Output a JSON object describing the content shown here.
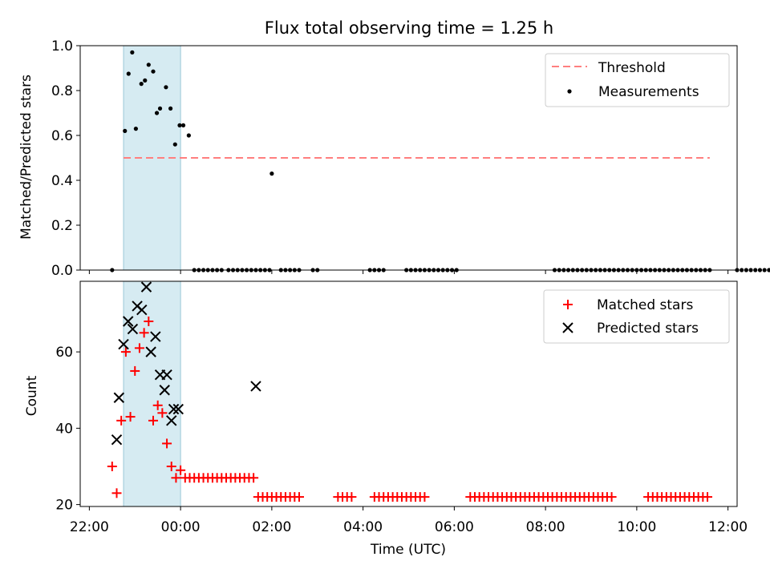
{
  "title": "Flux total observing time = 1.25 h",
  "chart_data": [
    {
      "type": "scatter",
      "ylabel": "Matched/Predicted stars",
      "ylim": [
        0.0,
        1.0
      ],
      "yticks": [
        "0.0",
        "0.2",
        "0.4",
        "0.6",
        "0.8",
        "1.0"
      ],
      "ytick_values": [
        0,
        0.2,
        0.4,
        0.6,
        0.8,
        1.0
      ],
      "grid": false,
      "legend_position": "top-right",
      "shaded_interval": [
        -1.25,
        0.0
      ],
      "threshold": {
        "name": "Threshold",
        "x_range": [
          -1.25,
          11.6
        ],
        "value": 0.5,
        "color": "#ff7f7f"
      },
      "series": [
        {
          "name": "Measurements",
          "marker": "dot",
          "color": "#000000",
          "points": [
            [
              -1.5,
              0.0
            ],
            [
              -1.22,
              0.62
            ],
            [
              -1.14,
              0.875
            ],
            [
              -1.06,
              0.97
            ],
            [
              -0.98,
              0.63
            ],
            [
              -0.86,
              0.83
            ],
            [
              -0.78,
              0.845
            ],
            [
              -0.7,
              0.915
            ],
            [
              -0.6,
              0.885
            ],
            [
              -0.52,
              0.7
            ],
            [
              -0.45,
              0.72
            ],
            [
              -0.32,
              0.815
            ],
            [
              -0.22,
              0.72
            ],
            [
              -0.12,
              0.56
            ],
            [
              -0.02,
              0.645
            ],
            [
              0.06,
              0.645
            ],
            [
              0.18,
              0.6
            ],
            [
              0.3,
              0.0
            ],
            [
              0.4,
              0.0
            ],
            [
              0.5,
              0.0
            ],
            [
              0.6,
              0.0
            ],
            [
              0.7,
              0.0
            ],
            [
              0.8,
              0.0
            ],
            [
              0.9,
              0.0
            ],
            [
              1.05,
              0.0
            ],
            [
              1.15,
              0.0
            ],
            [
              1.25,
              0.0
            ],
            [
              1.35,
              0.0
            ],
            [
              1.45,
              0.0
            ],
            [
              1.55,
              0.0
            ],
            [
              1.65,
              0.0
            ],
            [
              1.75,
              0.0
            ],
            [
              1.85,
              0.0
            ],
            [
              1.95,
              0.0
            ],
            [
              2.0,
              0.43
            ],
            [
              2.2,
              0.0
            ],
            [
              2.3,
              0.0
            ],
            [
              2.4,
              0.0
            ],
            [
              2.5,
              0.0
            ],
            [
              2.6,
              0.0
            ],
            [
              2.9,
              0.0
            ],
            [
              3.0,
              0.0
            ],
            [
              4.15,
              0.0
            ],
            [
              4.25,
              0.0
            ],
            [
              4.35,
              0.0
            ],
            [
              4.45,
              0.0
            ],
            [
              4.95,
              0.0
            ],
            [
              5.05,
              0.0
            ],
            [
              5.15,
              0.0
            ],
            [
              5.25,
              0.0
            ],
            [
              5.35,
              0.0
            ],
            [
              5.45,
              0.0
            ],
            [
              5.55,
              0.0
            ],
            [
              5.65,
              0.0
            ],
            [
              5.75,
              0.0
            ],
            [
              5.85,
              0.0
            ],
            [
              5.95,
              0.0
            ],
            [
              6.05,
              0.0
            ],
            [
              8.2,
              0.0
            ],
            [
              8.3,
              0.0
            ],
            [
              8.4,
              0.0
            ],
            [
              8.5,
              0.0
            ],
            [
              8.6,
              0.0
            ],
            [
              8.7,
              0.0
            ],
            [
              8.8,
              0.0
            ],
            [
              8.9,
              0.0
            ],
            [
              9.0,
              0.0
            ],
            [
              9.1,
              0.0
            ],
            [
              9.2,
              0.0
            ],
            [
              9.3,
              0.0
            ],
            [
              9.4,
              0.0
            ],
            [
              9.5,
              0.0
            ],
            [
              9.6,
              0.0
            ],
            [
              9.7,
              0.0
            ],
            [
              9.8,
              0.0
            ],
            [
              9.9,
              0.0
            ],
            [
              10.0,
              0.0
            ],
            [
              10.1,
              0.0
            ],
            [
              10.2,
              0.0
            ],
            [
              10.3,
              0.0
            ],
            [
              10.4,
              0.0
            ],
            [
              10.5,
              0.0
            ],
            [
              10.6,
              0.0
            ],
            [
              10.7,
              0.0
            ],
            [
              10.8,
              0.0
            ],
            [
              10.9,
              0.0
            ],
            [
              11.0,
              0.0
            ],
            [
              11.1,
              0.0
            ],
            [
              11.2,
              0.0
            ],
            [
              11.3,
              0.0
            ],
            [
              11.4,
              0.0
            ],
            [
              11.5,
              0.0
            ],
            [
              11.6,
              0.0
            ],
            [
              12.2,
              0.0
            ],
            [
              12.3,
              0.0
            ],
            [
              12.4,
              0.0
            ],
            [
              12.5,
              0.0
            ],
            [
              12.6,
              0.0
            ],
            [
              12.7,
              0.0
            ],
            [
              12.8,
              0.0
            ],
            [
              12.9,
              0.0
            ],
            [
              13.0,
              0.0
            ],
            [
              13.1,
              0.0
            ],
            [
              13.2,
              0.0
            ],
            [
              13.3,
              0.0
            ],
            [
              13.4,
              0.0
            ],
            [
              13.5,
              0.0
            ]
          ]
        }
      ]
    },
    {
      "type": "scatter",
      "xlabel": "Time (UTC)",
      "ylabel": "Count",
      "xlim": [
        -2.2,
        12.2
      ],
      "ylim": [
        19.5,
        78.5
      ],
      "xticks": [
        "22:00",
        "00:00",
        "02:00",
        "04:00",
        "06:00",
        "08:00",
        "10:00",
        "12:00"
      ],
      "xtick_values": [
        -2,
        0,
        2,
        4,
        6,
        8,
        10,
        12
      ],
      "yticks": [
        "20",
        "40",
        "60"
      ],
      "ytick_values": [
        20,
        40,
        60
      ],
      "grid": false,
      "legend_position": "top-right",
      "shaded_interval": [
        -1.25,
        0.0
      ],
      "series": [
        {
          "name": "Matched stars",
          "marker": "plus",
          "color": "#ff0000",
          "points": [
            [
              -1.5,
              30
            ],
            [
              -1.4,
              23
            ],
            [
              -1.3,
              42
            ],
            [
              -1.2,
              60
            ],
            [
              -1.1,
              43
            ],
            [
              -1.0,
              55
            ],
            [
              -0.9,
              61
            ],
            [
              -0.8,
              65
            ],
            [
              -0.7,
              68
            ],
            [
              -0.6,
              42
            ],
            [
              -0.5,
              46
            ],
            [
              -0.4,
              44
            ],
            [
              -0.3,
              36
            ],
            [
              -0.2,
              30
            ],
            [
              -0.1,
              27
            ],
            [
              0.0,
              29
            ],
            [
              0.1,
              27
            ],
            [
              0.2,
              27
            ],
            [
              0.3,
              27
            ],
            [
              0.4,
              27
            ],
            [
              0.5,
              27
            ],
            [
              0.6,
              27
            ],
            [
              0.7,
              27
            ],
            [
              0.8,
              27
            ],
            [
              0.9,
              27
            ],
            [
              1.0,
              27
            ],
            [
              1.1,
              27
            ],
            [
              1.2,
              27
            ],
            [
              1.3,
              27
            ],
            [
              1.4,
              27
            ],
            [
              1.5,
              27
            ],
            [
              1.6,
              27
            ],
            [
              1.7,
              22
            ],
            [
              1.8,
              22
            ],
            [
              1.9,
              22
            ],
            [
              2.0,
              22
            ],
            [
              2.1,
              22
            ],
            [
              2.2,
              22
            ],
            [
              2.3,
              22
            ],
            [
              2.4,
              22
            ],
            [
              2.5,
              22
            ],
            [
              2.6,
              22
            ],
            [
              3.45,
              22
            ],
            [
              3.55,
              22
            ],
            [
              3.65,
              22
            ],
            [
              3.75,
              22
            ],
            [
              4.25,
              22
            ],
            [
              4.35,
              22
            ],
            [
              4.45,
              22
            ],
            [
              4.55,
              22
            ],
            [
              4.65,
              22
            ],
            [
              4.75,
              22
            ],
            [
              4.85,
              22
            ],
            [
              4.95,
              22
            ],
            [
              5.05,
              22
            ],
            [
              5.15,
              22
            ],
            [
              5.25,
              22
            ],
            [
              5.35,
              22
            ],
            [
              6.35,
              22
            ],
            [
              6.45,
              22
            ],
            [
              6.55,
              22
            ],
            [
              6.65,
              22
            ],
            [
              6.75,
              22
            ],
            [
              6.85,
              22
            ],
            [
              6.95,
              22
            ],
            [
              7.05,
              22
            ],
            [
              7.15,
              22
            ],
            [
              7.25,
              22
            ],
            [
              7.35,
              22
            ],
            [
              7.45,
              22
            ],
            [
              7.55,
              22
            ],
            [
              7.65,
              22
            ],
            [
              7.75,
              22
            ],
            [
              7.85,
              22
            ],
            [
              7.95,
              22
            ],
            [
              8.05,
              22
            ],
            [
              8.15,
              22
            ],
            [
              8.25,
              22
            ],
            [
              8.35,
              22
            ],
            [
              8.45,
              22
            ],
            [
              8.55,
              22
            ],
            [
              8.65,
              22
            ],
            [
              8.75,
              22
            ],
            [
              8.85,
              22
            ],
            [
              8.95,
              22
            ],
            [
              9.05,
              22
            ],
            [
              9.15,
              22
            ],
            [
              9.25,
              22
            ],
            [
              9.35,
              22
            ],
            [
              9.45,
              22
            ],
            [
              10.25,
              22
            ],
            [
              10.35,
              22
            ],
            [
              10.45,
              22
            ],
            [
              10.55,
              22
            ],
            [
              10.65,
              22
            ],
            [
              10.75,
              22
            ],
            [
              10.85,
              22
            ],
            [
              10.95,
              22
            ],
            [
              11.05,
              22
            ],
            [
              11.15,
              22
            ],
            [
              11.25,
              22
            ],
            [
              11.35,
              22
            ],
            [
              11.45,
              22
            ],
            [
              11.55,
              22
            ]
          ]
        },
        {
          "name": "Predicted stars",
          "marker": "x",
          "color": "#000000",
          "points": [
            [
              -1.4,
              37
            ],
            [
              -1.35,
              48
            ],
            [
              -1.25,
              62
            ],
            [
              -1.15,
              68
            ],
            [
              -1.05,
              66
            ],
            [
              -0.95,
              72
            ],
            [
              -0.85,
              71
            ],
            [
              -0.75,
              77
            ],
            [
              -0.65,
              60
            ],
            [
              -0.55,
              64
            ],
            [
              -0.45,
              54
            ],
            [
              -0.35,
              50
            ],
            [
              -0.3,
              54
            ],
            [
              -0.2,
              42
            ],
            [
              -0.15,
              45
            ],
            [
              -0.05,
              45
            ],
            [
              1.65,
              51
            ]
          ]
        }
      ]
    }
  ]
}
